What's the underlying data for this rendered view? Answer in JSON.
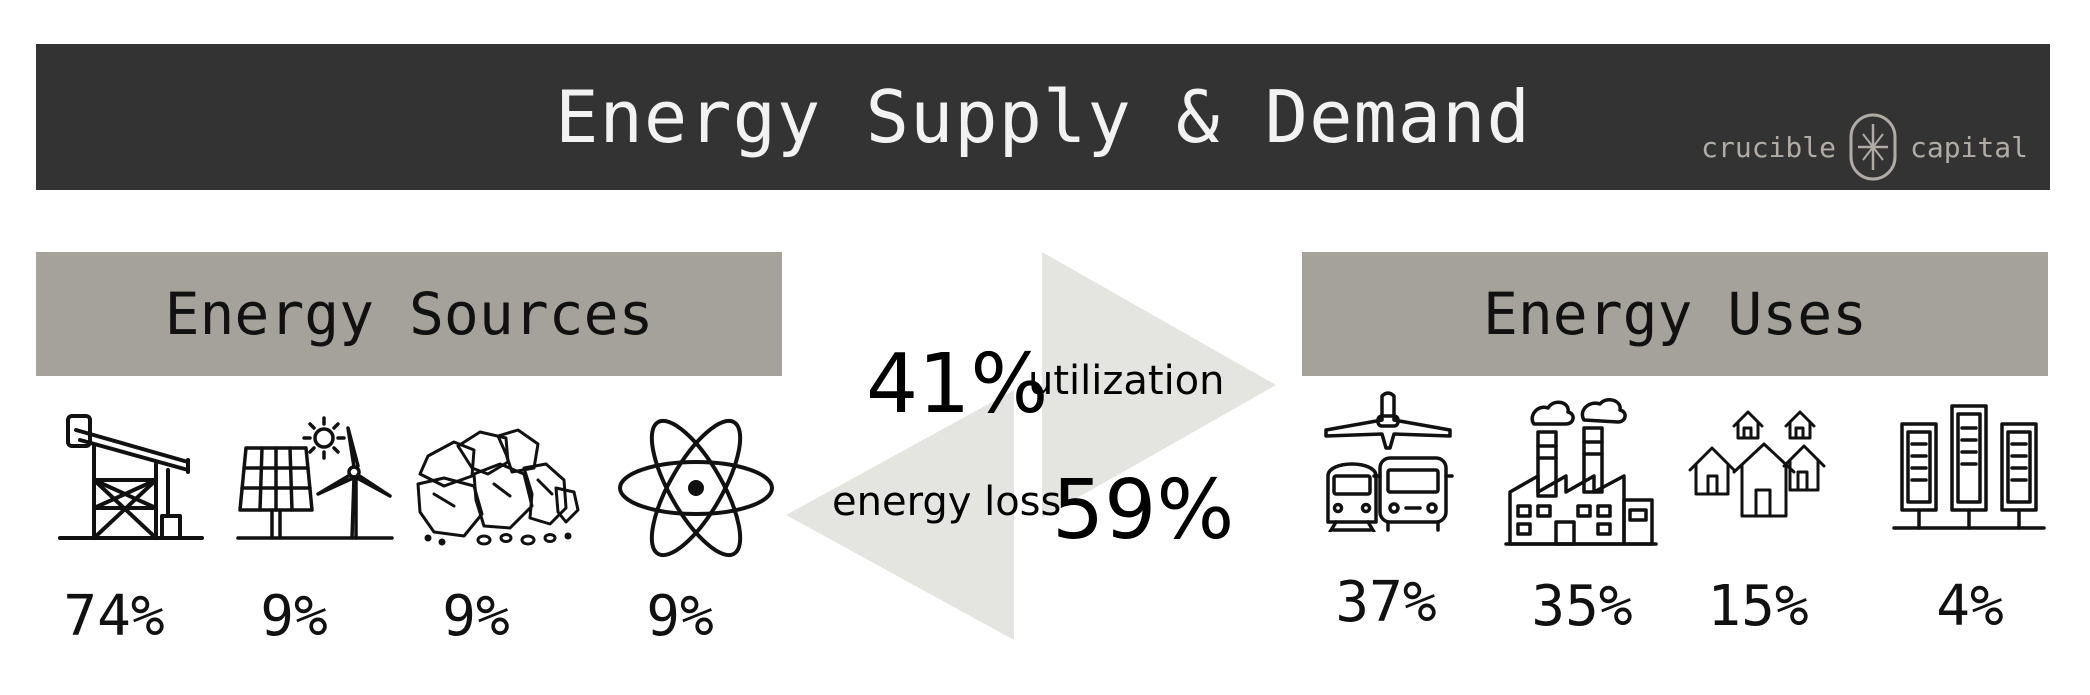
{
  "header": {
    "title": "Energy Supply & Demand",
    "brand_left": "crucible",
    "brand_right": "capital"
  },
  "sources": {
    "heading": "Energy Sources",
    "items": [
      {
        "icon": "oil-pump-icon",
        "pct": "74%"
      },
      {
        "icon": "solar-wind-icon",
        "pct": "9%"
      },
      {
        "icon": "coal-icon",
        "pct": "9%"
      },
      {
        "icon": "atom-icon",
        "pct": "9%"
      }
    ]
  },
  "flow": {
    "utilization_value": "41%",
    "utilization_label": "utilization",
    "loss_label": "energy loss",
    "loss_value": "59%",
    "arrow_color": "#e4e4e0"
  },
  "uses": {
    "heading": "Energy Uses",
    "items": [
      {
        "icon": "transport-icon",
        "pct": "37%"
      },
      {
        "icon": "factory-icon",
        "pct": "35%"
      },
      {
        "icon": "houses-icon",
        "pct": "15%"
      },
      {
        "icon": "data-center-icon",
        "pct": "4%"
      }
    ]
  },
  "colors": {
    "title_bar": "#333333",
    "panel": "#a5a29c",
    "brand": "#b0aca5"
  }
}
